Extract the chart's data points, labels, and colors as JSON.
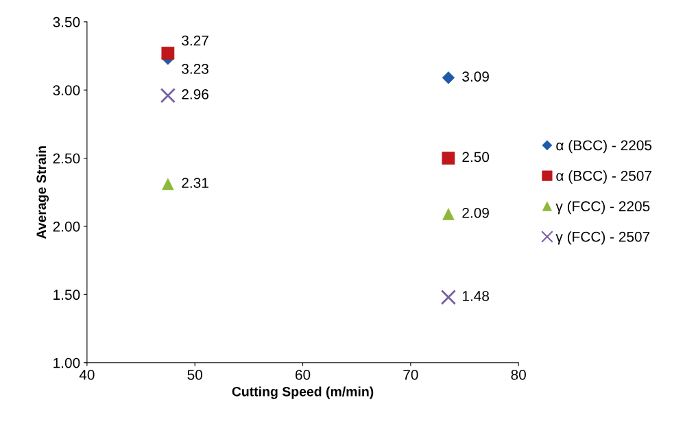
{
  "chart_data": {
    "type": "scatter",
    "xlabel": "Cutting Speed (m/min)",
    "ylabel": "Average Strain",
    "xlim": [
      40,
      80
    ],
    "xticks": [
      40,
      50,
      60,
      70,
      80
    ],
    "ylim": [
      1.0,
      3.5
    ],
    "yticks": [
      {
        "value": 1.0,
        "label": "1.00"
      },
      {
        "value": 1.5,
        "label": "1.50"
      },
      {
        "value": 2.0,
        "label": "2.00"
      },
      {
        "value": 2.5,
        "label": "2.50"
      },
      {
        "value": 3.0,
        "label": "3.00"
      },
      {
        "value": 3.5,
        "label": "3.50"
      }
    ],
    "x": [
      47.5,
      73.5
    ],
    "series": [
      {
        "name": "α (BCC) - 2205",
        "color": "#1f5aa8",
        "marker": "diamond",
        "values": [
          3.23,
          3.09
        ],
        "value_labels": [
          "3.23",
          "3.09"
        ]
      },
      {
        "name": "α (BCC) - 2507",
        "color": "#c0171c",
        "marker": "square",
        "values": [
          3.27,
          2.5
        ],
        "value_labels": [
          "3.27",
          "2.50"
        ]
      },
      {
        "name": "γ (FCC) - 2205",
        "color": "#8db83a",
        "marker": "triangle",
        "values": [
          2.31,
          2.09
        ],
        "value_labels": [
          "2.31",
          "2.09"
        ]
      },
      {
        "name": "γ (FCC) - 2507",
        "color": "#7b5ea7",
        "marker": "cross",
        "values": [
          2.96,
          1.48
        ],
        "value_labels": [
          "2.96",
          "1.48"
        ]
      }
    ],
    "grid": false,
    "legend": "right"
  }
}
